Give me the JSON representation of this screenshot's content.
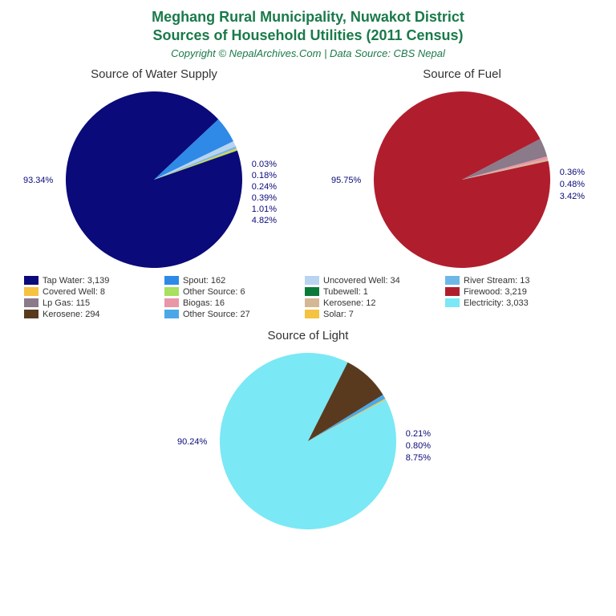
{
  "title_line1": "Meghang Rural Municipality, Nuwakot District",
  "title_line2": "Sources of Household Utilities (2011 Census)",
  "subtitle": "Copyright © NepalArchives.Com | Data Source: CBS Nepal",
  "charts": {
    "water": {
      "title": "Source of Water Supply",
      "slices": [
        {
          "pct": 93.34,
          "color": "#0a0a7a",
          "label": "93.34%"
        },
        {
          "pct": 4.82,
          "color": "#2e8ae6",
          "label": "4.82%"
        },
        {
          "pct": 1.01,
          "color": "#b8d4f0",
          "label": "1.01%"
        },
        {
          "pct": 0.39,
          "color": "#6eb8e8",
          "label": "0.39%"
        },
        {
          "pct": 0.24,
          "color": "#f5c242",
          "label": "0.24%"
        },
        {
          "pct": 0.18,
          "color": "#a8e05f",
          "label": "0.18%"
        },
        {
          "pct": 0.03,
          "color": "#0a7a3a",
          "label": "0.03%"
        }
      ],
      "main_label": "93.34%",
      "side_labels": [
        "0.03%",
        "0.18%",
        "0.24%",
        "0.39%",
        "1.01%",
        "4.82%"
      ]
    },
    "fuel": {
      "title": "Source of Fuel",
      "slices": [
        {
          "pct": 95.75,
          "color": "#b01e2e",
          "label": "95.75%"
        },
        {
          "pct": 3.42,
          "color": "#8a7a8a",
          "label": "3.42%"
        },
        {
          "pct": 0.48,
          "color": "#e896a8",
          "label": "0.48%"
        },
        {
          "pct": 0.36,
          "color": "#d4b896",
          "label": "0.36%"
        }
      ],
      "main_label": "95.75%",
      "side_labels": [
        "0.36%",
        "0.48%",
        "3.42%"
      ]
    },
    "light": {
      "title": "Source of Light",
      "slices": [
        {
          "pct": 90.24,
          "color": "#7ae8f5",
          "label": "90.24%"
        },
        {
          "pct": 8.75,
          "color": "#5a3a1e",
          "label": "8.75%"
        },
        {
          "pct": 0.8,
          "color": "#4aa8e8",
          "label": "0.80%"
        },
        {
          "pct": 0.21,
          "color": "#f5c242",
          "label": "0.21%"
        }
      ],
      "main_label": "90.24%",
      "side_labels": [
        "0.21%",
        "0.80%",
        "8.75%"
      ]
    }
  },
  "legend": [
    {
      "color": "#0a0a7a",
      "label": "Tap Water: 3,139"
    },
    {
      "color": "#2e8ae6",
      "label": "Spout: 162"
    },
    {
      "color": "#b8d4f0",
      "label": "Uncovered Well: 34"
    },
    {
      "color": "#6eb8e8",
      "label": "River Stream: 13"
    },
    {
      "color": "#f5c242",
      "label": "Covered Well: 8"
    },
    {
      "color": "#a8e05f",
      "label": "Other Source: 6"
    },
    {
      "color": "#0a7a3a",
      "label": "Tubewell: 1"
    },
    {
      "color": "#b01e2e",
      "label": "Firewood: 3,219"
    },
    {
      "color": "#8a7a8a",
      "label": "Lp Gas: 115"
    },
    {
      "color": "#e896a8",
      "label": "Biogas: 16"
    },
    {
      "color": "#d4b896",
      "label": "Kerosene: 12"
    },
    {
      "color": "#7ae8f5",
      "label": "Electricity: 3,033"
    },
    {
      "color": "#5a3a1e",
      "label": "Kerosene: 294"
    },
    {
      "color": "#4aa8e8",
      "label": "Other Source: 27"
    },
    {
      "color": "#f5c242",
      "label": "Solar: 7"
    }
  ]
}
